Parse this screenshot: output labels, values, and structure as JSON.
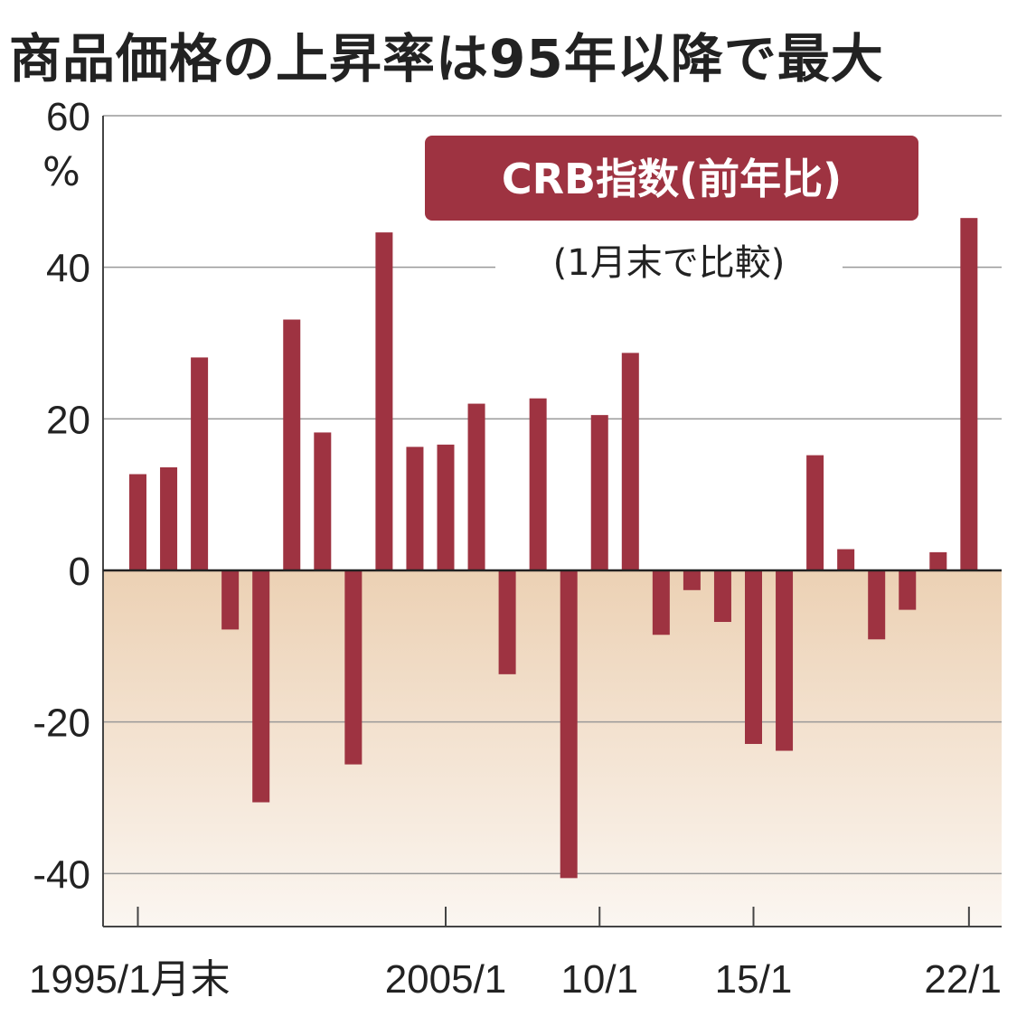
{
  "chart_data": {
    "type": "bar",
    "title": "商品価格の上昇率は95年以降で最大",
    "unit": "%",
    "legend": "CRB指数(前年比)",
    "note": "(1月末で比較)",
    "ylim": [
      -47,
      60
    ],
    "yticks": [
      60,
      40,
      20,
      0,
      -20,
      -40
    ],
    "xtick_labels": [
      {
        "index": 0,
        "label": "1995/1月末"
      },
      {
        "index": 10,
        "label": "2005/1"
      },
      {
        "index": 15,
        "label": "10/1"
      },
      {
        "index": 20,
        "label": "15/1"
      },
      {
        "index": 27,
        "label": "22/1"
      }
    ],
    "categories": [
      "1995",
      "1996",
      "1997",
      "1998",
      "1999",
      "2000",
      "2001",
      "2002",
      "2003",
      "2004",
      "2005",
      "2006",
      "2007",
      "2008",
      "2009",
      "2010",
      "2011",
      "2012",
      "2013",
      "2014",
      "2015",
      "2016",
      "2017",
      "2018",
      "2019",
      "2020",
      "2021",
      "2022"
    ],
    "values": [
      12.7,
      13.6,
      28.1,
      -7.8,
      -30.6,
      33.1,
      18.2,
      -25.6,
      44.6,
      16.3,
      16.6,
      22.0,
      -13.7,
      22.7,
      -40.6,
      20.5,
      28.7,
      -8.5,
      -2.6,
      -6.8,
      -22.9,
      -23.8,
      15.2,
      2.8,
      -9.1,
      -5.2,
      2.4,
      46.5
    ],
    "grid": true,
    "colors": {
      "bar": "#9e3341",
      "axis": "#555555",
      "grid": "#999999",
      "negative_band_top": "#ecd1b4",
      "negative_band_bottom": "#fbf6f1",
      "legend_bg": "#9e3341"
    }
  }
}
